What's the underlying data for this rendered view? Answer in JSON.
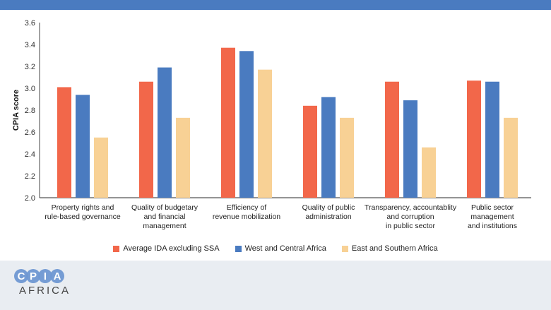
{
  "chart_data": {
    "type": "bar",
    "ylabel": "CPIA score",
    "xlabel": "",
    "ylim": [
      2.0,
      3.6
    ],
    "yticks": [
      "2.0",
      "2.2",
      "2.4",
      "2.6",
      "2.8",
      "3.0",
      "3.2",
      "3.4",
      "3.6"
    ],
    "grid": false,
    "legend_position": "bottom",
    "categories": [
      [
        "Property rights and",
        "rule-based governance"
      ],
      [
        "Quality of budgetary",
        "and financial",
        "management"
      ],
      [
        "Efficiency of",
        "revenue mobilization"
      ],
      [
        "Quality of public",
        "administration"
      ],
      [
        "Transparency, accountablity",
        "and corruption",
        "in public sector"
      ],
      [
        "Public sector",
        "management",
        "and institutions"
      ]
    ],
    "series": [
      {
        "name": "Average IDA excluding SSA",
        "color": "#f2674a",
        "values": [
          3.01,
          3.06,
          3.37,
          2.84,
          3.06,
          3.07
        ]
      },
      {
        "name": "West and Central Africa",
        "color": "#4a7bc0",
        "values": [
          2.94,
          3.19,
          3.34,
          2.92,
          2.89,
          3.06
        ]
      },
      {
        "name": "East and Southern Africa",
        "color": "#f8d195",
        "values": [
          2.55,
          2.73,
          3.17,
          2.73,
          2.46,
          2.73
        ]
      }
    ]
  },
  "logo": {
    "letters": [
      "C",
      "P",
      "I",
      "A"
    ],
    "subtitle": "AFRICA"
  }
}
